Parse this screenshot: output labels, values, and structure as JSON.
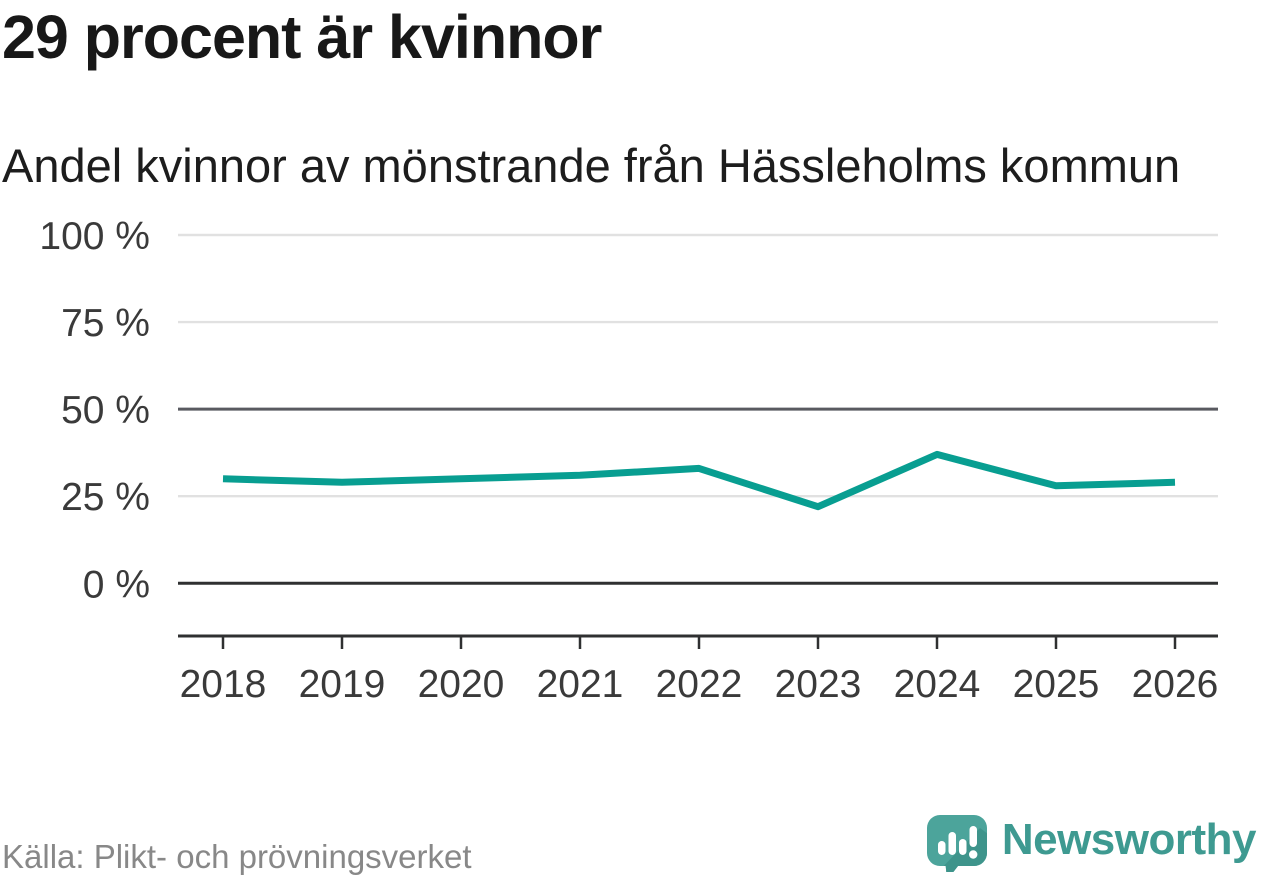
{
  "header": {
    "title": "29 procent är kvinnor",
    "subtitle": "Andel kvinnor av mönstrande från Hässleholms kommun"
  },
  "chart_data": {
    "type": "line",
    "categories": [
      "2018",
      "2019",
      "2020",
      "2021",
      "2022",
      "2023",
      "2024",
      "2025",
      "2026"
    ],
    "series": [
      {
        "name": "Andel kvinnor (%)",
        "values": [
          30,
          29,
          30,
          31,
          33,
          22,
          37,
          28,
          29
        ]
      }
    ],
    "title": "29 procent är kvinnor",
    "subtitle": "Andel kvinnor av mönstrande från Hässleholms kommun",
    "xlabel": "",
    "ylabel": "",
    "ylim": [
      0,
      100
    ],
    "y_ticks": [
      {
        "value": 0,
        "label": "0 %"
      },
      {
        "value": 25,
        "label": "25 %"
      },
      {
        "value": 50,
        "label": "50 %"
      },
      {
        "value": 75,
        "label": "75 %"
      },
      {
        "value": 100,
        "label": "100 %"
      }
    ],
    "grid": "horizontal-only",
    "legend": "none"
  },
  "footer": {
    "source": "Källa: Plikt- och prövningsverket",
    "brand": "Newsworthy",
    "logo_icon": "bar-chart-speech-bubble-icon"
  },
  "colors": {
    "line": "#089e91",
    "grid_light": "#e1e1e1",
    "grid_mid": "#595a60",
    "grid_dark": "#2f3031",
    "text_dark": "#181818",
    "text_axis": "#3a3a3a",
    "text_muted": "#888888",
    "brand_teal": "#4ca49b",
    "brand_teal_dark": "#3e948b",
    "brand_text": "#3e9a91"
  }
}
